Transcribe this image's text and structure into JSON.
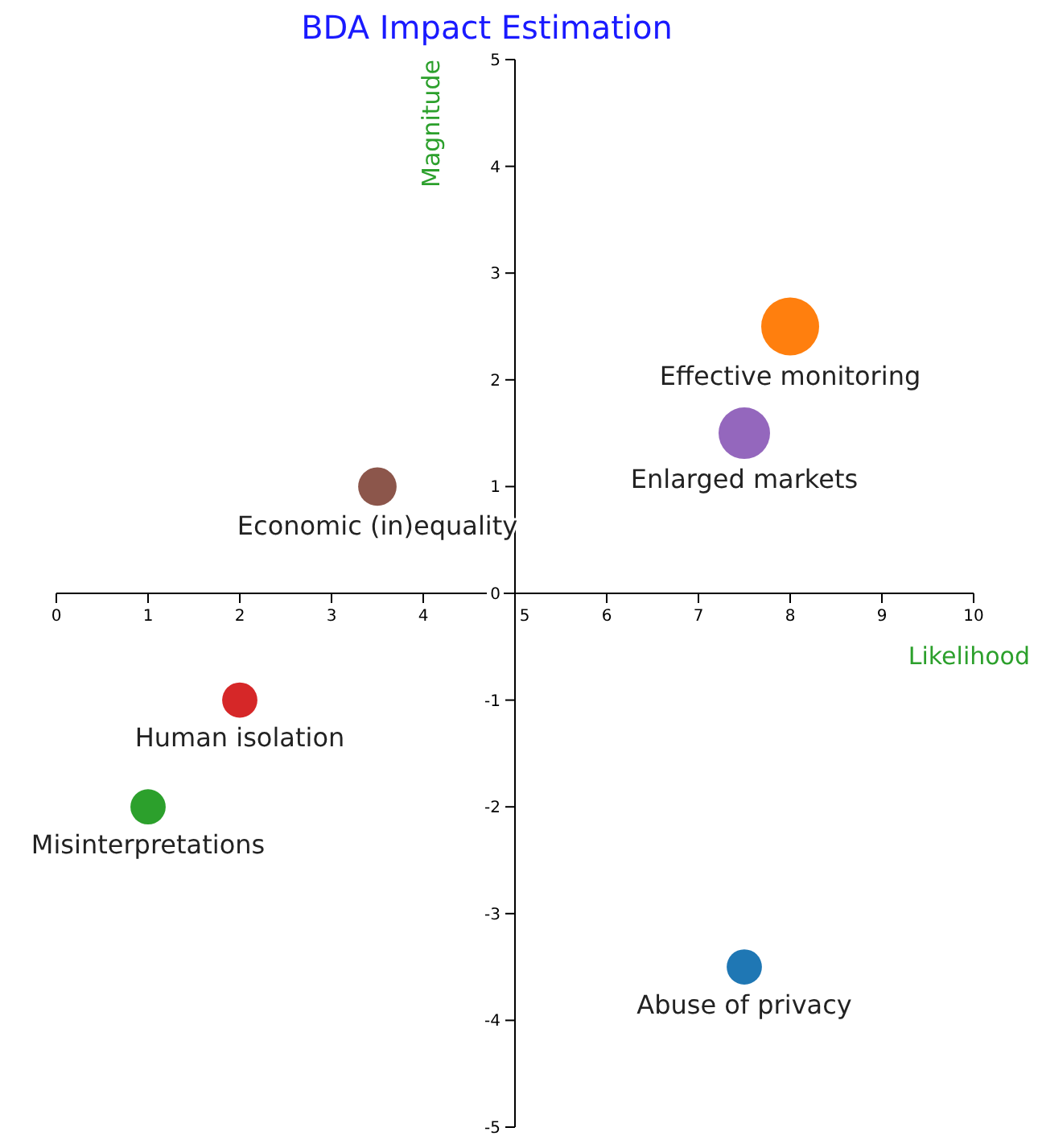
{
  "chart_data": {
    "type": "bubble",
    "title": "BDA Impact Estimation",
    "xlabel": "Likelihood",
    "ylabel": "Magnitude",
    "xlim": [
      0,
      10
    ],
    "xticks": [
      0,
      1,
      2,
      3,
      4,
      5,
      6,
      7,
      8,
      9,
      10
    ],
    "ylim": [
      -5,
      5
    ],
    "yticks": [
      -5,
      -4,
      -3,
      -2,
      -1,
      0,
      1,
      2,
      3,
      4,
      5
    ],
    "grid": false,
    "series": [
      {
        "name": "Effective monitoring",
        "color": "#ff7f0e",
        "x": [
          8
        ],
        "values": [
          2.5
        ],
        "sizes": [
          1
        ]
      },
      {
        "name": "Enlarged markets",
        "color": "#9467bd",
        "x": [
          7.5
        ],
        "values": [
          1.5
        ],
        "sizes": [
          0.79
        ]
      },
      {
        "name": "Economic (in)equality",
        "color": "#8c564b",
        "x": [
          3.5
        ],
        "values": [
          1
        ],
        "sizes": [
          0.44
        ]
      },
      {
        "name": "Human isolation",
        "color": "#d62728",
        "x": [
          2
        ],
        "values": [
          -1
        ],
        "sizes": [
          0.37
        ]
      },
      {
        "name": "Misinterpretations",
        "color": "#2ca02c",
        "x": [
          1
        ],
        "values": [
          -2
        ],
        "sizes": [
          0.37
        ]
      },
      {
        "name": "Abuse of privacy",
        "color": "#1f77b4",
        "x": [
          7.5
        ],
        "values": [
          -3.5
        ],
        "sizes": [
          0.37
        ]
      }
    ]
  }
}
